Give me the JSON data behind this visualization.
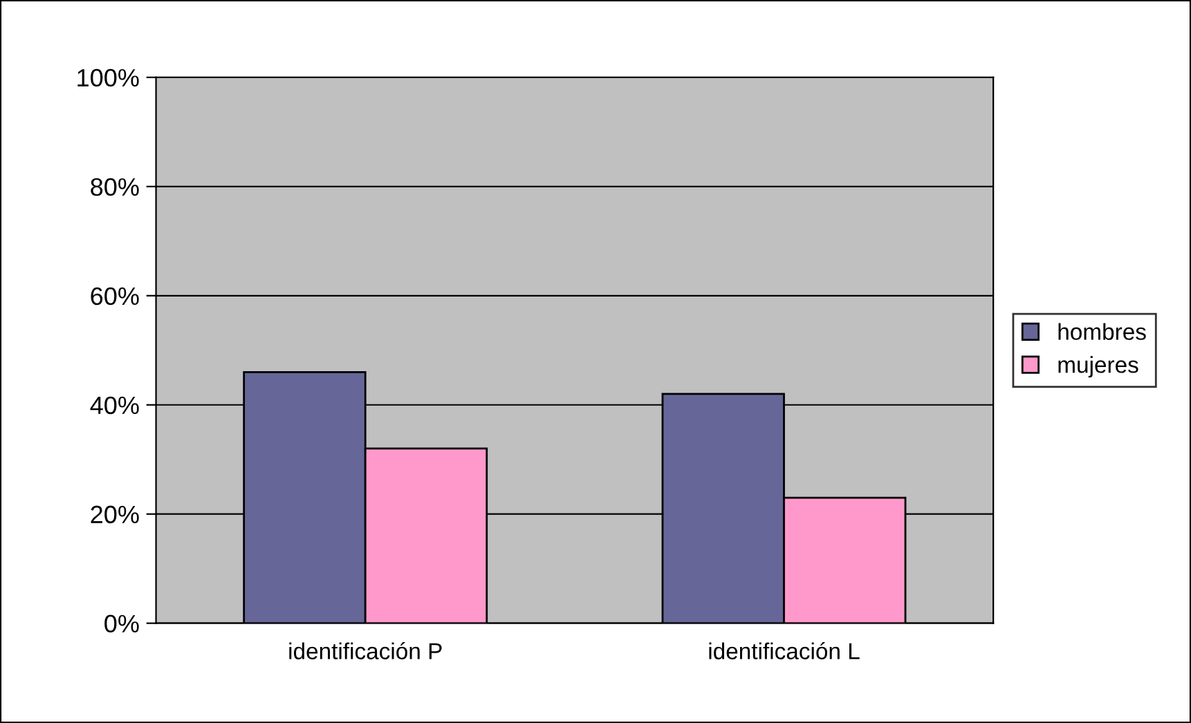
{
  "chart_data": {
    "type": "bar",
    "categories": [
      "identificación P",
      "identificación L"
    ],
    "series": [
      {
        "name": "hombres",
        "color": "#666699",
        "values": [
          46,
          42
        ]
      },
      {
        "name": "mujeres",
        "color": "#ff99cc",
        "values": [
          32,
          23
        ]
      }
    ],
    "ylim": [
      0,
      100
    ],
    "yticks": [
      {
        "value": 0,
        "label": "0%"
      },
      {
        "value": 20,
        "label": "20%"
      },
      {
        "value": 40,
        "label": "40%"
      },
      {
        "value": 60,
        "label": "60%"
      },
      {
        "value": 80,
        "label": "80%"
      },
      {
        "value": 100,
        "label": "100%"
      }
    ],
    "grid": "y",
    "legend": "right"
  }
}
